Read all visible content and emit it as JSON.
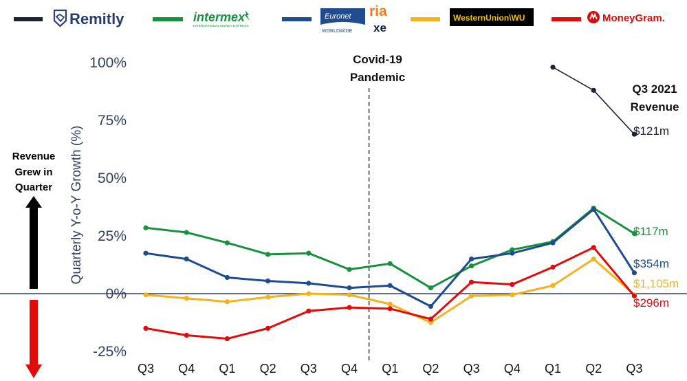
{
  "legend": [
    {
      "name": "remitly",
      "logo_text": "Remitly",
      "color": "#1e2235",
      "logo_color": "#2b3f6e"
    },
    {
      "name": "intermex",
      "logo_text": "intermex",
      "logo_subtext": "INTERNATIONAL MONEY EXPRESS",
      "color": "#17903f",
      "logo_color": "#17903f"
    },
    {
      "name": "euronet",
      "logo_text": "Euronet",
      "logo_subtext": "WORLDWIDE",
      "logo_text2": "ria",
      "logo_text3": "xe",
      "color": "#1f4b8f",
      "logo_color": "#1f4b8f"
    },
    {
      "name": "western-union",
      "logo_text": "WesternUnion\\WU",
      "color": "#f2b31e",
      "logo_color": "#f2c200"
    },
    {
      "name": "moneygram",
      "logo_text": "MoneyGram.",
      "color": "#e00b0b",
      "logo_color": "#d60d0d"
    }
  ],
  "annotations": {
    "covid": "Covid-19 Pandemic",
    "covid_line1": "Covid-19",
    "covid_line2": "Pandemic",
    "q3_revenue_line1": "Q3 2021",
    "q3_revenue_line2": "Revenue",
    "revenue_grew_line1": "Revenue",
    "revenue_grew_line2": "Grew in",
    "revenue_grew_line3": "Quarter"
  },
  "chart_data": {
    "type": "line",
    "title": "",
    "xlabel": "",
    "ylabel": "Quarterly Y-o-Y Growth (%)",
    "categories": [
      "Q3",
      "Q4",
      "Q1",
      "Q2",
      "Q3",
      "Q4",
      "Q1",
      "Q2",
      "Q3",
      "Q4",
      "Q1",
      "Q2",
      "Q3"
    ],
    "ylim": [
      -25,
      100
    ],
    "yticks": [
      100,
      75,
      50,
      25,
      0,
      -25
    ],
    "ytick_labels": [
      "100%",
      "75%",
      "50%",
      "25%",
      "0%",
      "-25%"
    ],
    "grid": false,
    "covid_marker_between": [
      5,
      6
    ],
    "series": [
      {
        "name": "Remitly",
        "color": "#1e2235",
        "values": [
          null,
          null,
          null,
          null,
          null,
          null,
          null,
          null,
          null,
          null,
          98,
          88,
          69
        ],
        "end_label": "$121m"
      },
      {
        "name": "Intermex",
        "color": "#17903f",
        "values": [
          28.5,
          26.5,
          22,
          17,
          17.5,
          10.5,
          13,
          2.5,
          12,
          19,
          22.5,
          37,
          26
        ],
        "end_label": "$117m"
      },
      {
        "name": "Euronet",
        "color": "#1f4b8f",
        "values": [
          17.5,
          15,
          7,
          5.5,
          4.5,
          2.5,
          3.5,
          -5.5,
          15,
          17.5,
          22,
          36.5,
          9
        ],
        "end_label": "$354m"
      },
      {
        "name": "Western Union",
        "color": "#f2b31e",
        "values": [
          -0.5,
          -2,
          -3.5,
          -1.5,
          0,
          -0.5,
          -4.5,
          -12.5,
          -1,
          -0.5,
          3.5,
          15,
          -0.5
        ],
        "end_label": "$1,105m"
      },
      {
        "name": "MoneyGram",
        "color": "#e00b0b",
        "values": [
          -15,
          -18,
          -19.5,
          -15,
          -7.5,
          -6,
          -6.5,
          -11,
          5,
          4,
          11.5,
          20,
          -1
        ],
        "end_label": "$296m"
      }
    ]
  }
}
